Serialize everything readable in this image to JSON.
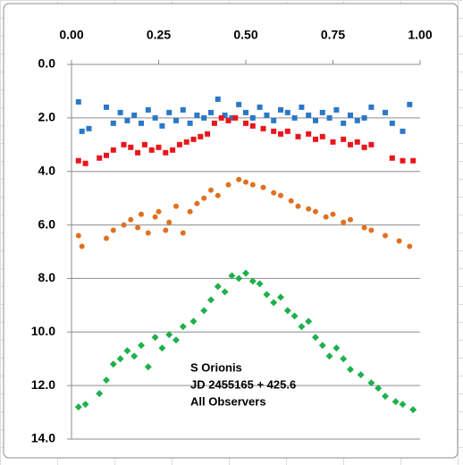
{
  "chart_data": {
    "type": "scatter",
    "annotations": [
      "S Orionis",
      "JD 2455165 + 425.6",
      "All Observers"
    ],
    "xlim": [
      0,
      1
    ],
    "xticks": [
      {
        "value": 0,
        "label": "0.00"
      },
      {
        "value": 0.25,
        "label": "0.25"
      },
      {
        "value": 0.5,
        "label": "0.50"
      },
      {
        "value": 0.75,
        "label": "0.75"
      },
      {
        "value": 1,
        "label": "1.00"
      }
    ],
    "ylim": [
      0,
      14
    ],
    "y_reversed": true,
    "yticks": [
      {
        "value": 0,
        "label": "0.0"
      },
      {
        "value": 2,
        "label": "2.0"
      },
      {
        "value": 4,
        "label": "4.0"
      },
      {
        "value": 6,
        "label": "6.0"
      },
      {
        "value": 8,
        "label": "8.0"
      },
      {
        "value": 10,
        "label": "10.0"
      },
      {
        "value": 12,
        "label": "12.0"
      },
      {
        "value": 14,
        "label": "14.0"
      }
    ],
    "grid": true,
    "series": [
      {
        "color": "#2a78c8",
        "marker": "square",
        "x": [
          0.02,
          0.03,
          0.05,
          0.1,
          0.12,
          0.14,
          0.16,
          0.18,
          0.2,
          0.22,
          0.24,
          0.26,
          0.28,
          0.3,
          0.32,
          0.34,
          0.36,
          0.38,
          0.4,
          0.42,
          0.44,
          0.46,
          0.48,
          0.5,
          0.52,
          0.54,
          0.56,
          0.58,
          0.6,
          0.62,
          0.64,
          0.66,
          0.68,
          0.7,
          0.72,
          0.74,
          0.76,
          0.78,
          0.8,
          0.82,
          0.84,
          0.86,
          0.9,
          0.92,
          0.95,
          0.97
        ],
        "values": [
          1.4,
          2.5,
          2.4,
          1.6,
          2.2,
          1.8,
          2.1,
          1.9,
          2.2,
          1.7,
          2.0,
          2.3,
          1.8,
          2.1,
          1.7,
          2.2,
          1.9,
          2.0,
          1.8,
          1.3,
          1.9,
          2.0,
          1.5,
          1.8,
          2.0,
          1.6,
          1.9,
          2.1,
          1.7,
          1.8,
          2.0,
          1.6,
          1.9,
          2.1,
          1.8,
          2.0,
          1.7,
          2.2,
          1.9,
          2.1,
          2.0,
          1.6,
          1.8,
          2.2,
          2.5,
          1.5
        ]
      },
      {
        "color": "#e8161b",
        "marker": "square",
        "x": [
          0.02,
          0.04,
          0.08,
          0.1,
          0.12,
          0.15,
          0.17,
          0.19,
          0.21,
          0.23,
          0.25,
          0.27,
          0.29,
          0.31,
          0.33,
          0.35,
          0.37,
          0.39,
          0.41,
          0.43,
          0.45,
          0.47,
          0.5,
          0.52,
          0.55,
          0.58,
          0.6,
          0.62,
          0.65,
          0.68,
          0.7,
          0.72,
          0.75,
          0.78,
          0.8,
          0.82,
          0.84,
          0.86,
          0.92,
          0.95,
          0.98
        ],
        "values": [
          3.6,
          3.7,
          3.5,
          3.4,
          3.2,
          3.0,
          3.1,
          3.3,
          3.0,
          3.2,
          3.1,
          3.3,
          3.2,
          3.0,
          2.9,
          2.8,
          2.7,
          2.6,
          2.2,
          2.0,
          2.1,
          2.0,
          2.2,
          2.3,
          2.4,
          2.5,
          2.6,
          2.5,
          2.7,
          2.6,
          2.8,
          2.7,
          2.9,
          2.8,
          3.0,
          2.9,
          3.1,
          3.0,
          3.5,
          3.6,
          3.6
        ]
      },
      {
        "color": "#e07020",
        "marker": "circle",
        "x": [
          0.02,
          0.03,
          0.1,
          0.12,
          0.15,
          0.17,
          0.19,
          0.2,
          0.22,
          0.24,
          0.25,
          0.27,
          0.28,
          0.3,
          0.32,
          0.34,
          0.36,
          0.38,
          0.4,
          0.42,
          0.45,
          0.48,
          0.5,
          0.52,
          0.55,
          0.58,
          0.6,
          0.63,
          0.65,
          0.68,
          0.7,
          0.73,
          0.75,
          0.78,
          0.8,
          0.84,
          0.86,
          0.9,
          0.94,
          0.97
        ],
        "values": [
          6.4,
          6.8,
          6.5,
          6.2,
          6.0,
          5.8,
          6.1,
          5.6,
          6.3,
          5.7,
          5.5,
          6.2,
          5.9,
          5.3,
          6.3,
          5.5,
          5.2,
          5.0,
          4.7,
          4.9,
          4.5,
          4.3,
          4.4,
          4.5,
          4.6,
          4.8,
          4.9,
          5.1,
          5.3,
          5.4,
          5.5,
          5.7,
          5.6,
          5.9,
          5.8,
          6.1,
          6.2,
          6.4,
          6.6,
          6.8
        ]
      },
      {
        "color": "#1fb04c",
        "marker": "diamond",
        "x": [
          0.02,
          0.04,
          0.08,
          0.1,
          0.12,
          0.14,
          0.16,
          0.18,
          0.2,
          0.22,
          0.24,
          0.26,
          0.28,
          0.3,
          0.32,
          0.35,
          0.38,
          0.4,
          0.42,
          0.44,
          0.46,
          0.48,
          0.5,
          0.52,
          0.54,
          0.56,
          0.58,
          0.6,
          0.62,
          0.64,
          0.66,
          0.68,
          0.7,
          0.72,
          0.74,
          0.76,
          0.78,
          0.8,
          0.83,
          0.86,
          0.88,
          0.9,
          0.93,
          0.95,
          0.98
        ],
        "values": [
          12.8,
          12.7,
          12.3,
          11.8,
          11.2,
          11.0,
          10.7,
          10.9,
          10.5,
          11.3,
          10.2,
          10.6,
          10.1,
          10.3,
          9.8,
          9.6,
          9.2,
          8.8,
          8.3,
          8.5,
          7.9,
          8.0,
          7.8,
          8.1,
          8.2,
          8.6,
          8.9,
          8.7,
          9.2,
          9.4,
          9.8,
          9.6,
          10.2,
          10.5,
          10.9,
          10.6,
          11.0,
          11.4,
          11.6,
          11.9,
          12.1,
          12.4,
          12.6,
          12.7,
          12.9
        ]
      }
    ]
  }
}
